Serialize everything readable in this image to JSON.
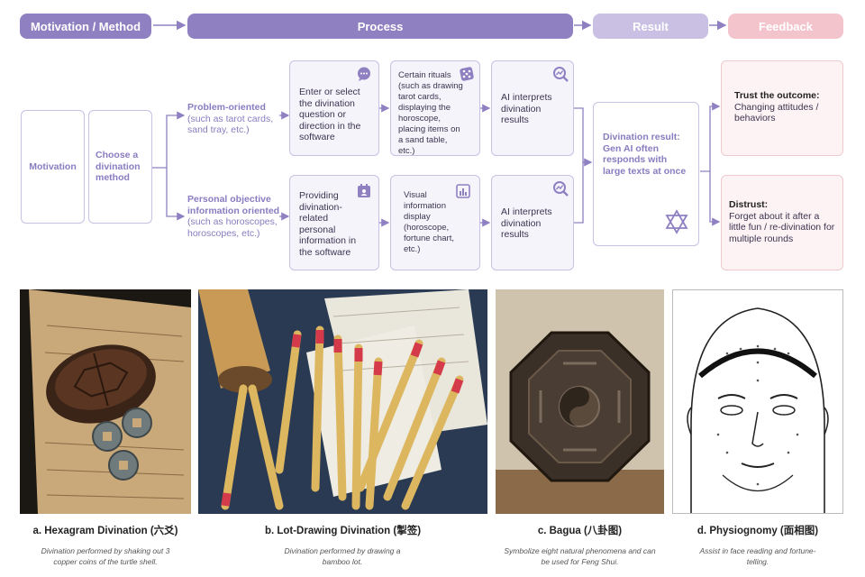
{
  "headers": {
    "motivation_method": "Motivation / Method",
    "process": "Process",
    "result": "Result",
    "feedback": "Feedback"
  },
  "colors": {
    "dark_purple": "#8f80c2",
    "light_purple": "#c9c0e3",
    "pink": "#f3c4cc",
    "purple_text": "#8a7cc0"
  },
  "flow": {
    "motivation": "Motivation",
    "choose_method": "Choose a divination method",
    "problem_oriented_title": "Problem-oriented",
    "problem_oriented_sub": "(such as tarot cards, sand tray, etc.)",
    "personal_title": "Personal objective information oriented",
    "personal_sub": "(such as horoscopes, horoscopes, etc.)",
    "step1_top": "Enter or select the divination question or direction in the software",
    "step2_top": "Certain rituals (such as drawing tarot cards, displaying the horoscope, placing items on a sand table, etc.)",
    "step3_top": "AI interprets divination results",
    "step1_bottom": "Providing divination-related personal information in the software",
    "step2_bottom": "Visual information display (horoscope, fortune chart, etc.)",
    "step3_bottom": "AI interprets divination results",
    "result_text": "Divination result: Gen AI often responds with large texts at once",
    "trust_title": "Trust the outcome:",
    "trust_text": "Changing attitudes / behaviors",
    "distrust_title": "Distrust:",
    "distrust_text": "Forget about it after a little fun / re-divination for multiple rounds"
  },
  "icons": {
    "step1_top": "chat-bubble-icon",
    "step2_top": "dice-icon",
    "step3_top": "magnify-chart-icon",
    "step1_bottom": "calendar-user-icon",
    "step2_bottom": "bar-chart-icon",
    "step3_bottom": "magnify-chart-icon",
    "result": "hexagram-star-icon"
  },
  "panels": [
    {
      "title": "a. Hexagram Divination (六爻)",
      "desc": "Divination performed by shaking out 3 copper coins of the turtle shell."
    },
    {
      "title": "b. Lot-Drawing Divination (掣签)",
      "desc": "Divination performed by drawing a bamboo lot."
    },
    {
      "title": "c. Bagua (八卦图)",
      "desc": "Symbolize eight natural phenomena and can be used for Feng Shui."
    },
    {
      "title": "d. Physiognomy (面相图)",
      "desc": "Assist in face reading and fortune-telling."
    }
  ]
}
